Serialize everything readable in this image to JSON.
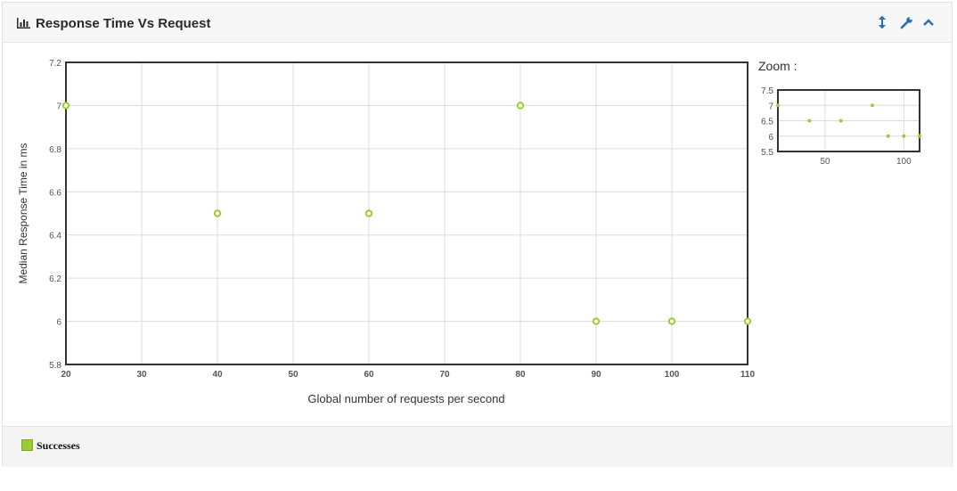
{
  "panel": {
    "title": "Response Time Vs Request",
    "icons": [
      "bar-chart-icon",
      "resize-vertical-icon",
      "wrench-icon",
      "chevron-up-icon"
    ]
  },
  "colors": {
    "series": "#9acd32",
    "icon": "#2a6fb0"
  },
  "chart_data": {
    "type": "scatter",
    "xlabel": "Global number of requests per second",
    "ylabel": "Median Response Time in ms",
    "xlim": [
      20,
      110
    ],
    "ylim": [
      5.8,
      7.2
    ],
    "x_ticks": [
      20,
      30,
      40,
      50,
      60,
      70,
      80,
      90,
      100,
      110
    ],
    "y_ticks": [
      5.8,
      6.0,
      6.2,
      6.4,
      6.6,
      6.8,
      7.0,
      7.2
    ],
    "grid": true,
    "legend": "bottom-left",
    "series": [
      {
        "name": "Successes",
        "x": [
          20,
          40,
          60,
          80,
          90,
          100,
          110
        ],
        "y": [
          7.0,
          6.5,
          6.5,
          7.0,
          6.0,
          6.0,
          6.0
        ]
      }
    ]
  },
  "zoom": {
    "label": "Zoom :",
    "xlim": [
      20,
      110
    ],
    "ylim": [
      5.5,
      7.5
    ],
    "x_ticks": [
      50,
      100
    ],
    "y_ticks": [
      5.5,
      6.0,
      6.5,
      7.0,
      7.5
    ]
  }
}
